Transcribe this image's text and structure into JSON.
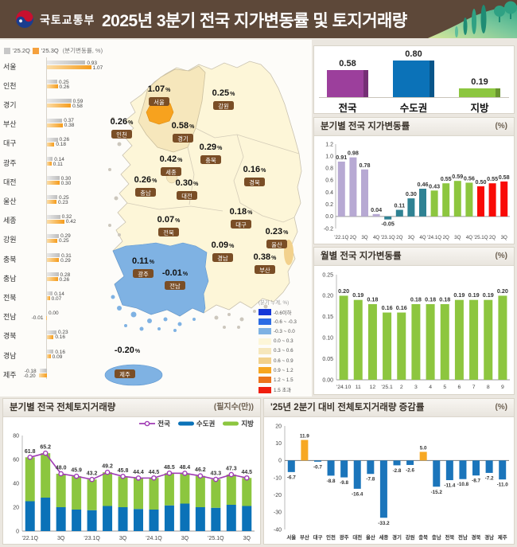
{
  "header": {
    "ministry": "국토교통부",
    "title": "2025년 3분기 전국 지가변동률 및 토지거래량"
  },
  "map": {
    "legend_title": "(분기 누계, %)",
    "legend": [
      {
        "range": "-0.6이하",
        "color": "#1438D8"
      },
      {
        "range": "-0.6 ~ -0.3",
        "color": "#2C6CE4"
      },
      {
        "range": "-0.3 ~ 0.0",
        "color": "#7FB2E3"
      },
      {
        "range": "0.0 ~ 0.3",
        "color": "#FDF6D8"
      },
      {
        "range": "0.3 ~ 0.6",
        "color": "#F6E7BC"
      },
      {
        "range": "0.6 ~ 0.9",
        "color": "#F2D18C"
      },
      {
        "range": "0.9 ~ 1.2",
        "color": "#F7A621"
      },
      {
        "range": "1.2 ~ 1.5",
        "color": "#EC741C"
      },
      {
        "range": "1.5 초과",
        "color": "#F01E0E"
      }
    ],
    "regions": [
      {
        "name": "서울",
        "value": "1.07"
      },
      {
        "name": "인천",
        "value": "0.26"
      },
      {
        "name": "경기",
        "value": "0.58"
      },
      {
        "name": "부산",
        "value": "0.38"
      },
      {
        "name": "대구",
        "value": "0.18"
      },
      {
        "name": "광주",
        "value": "0.11"
      },
      {
        "name": "대전",
        "value": "0.30"
      },
      {
        "name": "울산",
        "value": "0.23"
      },
      {
        "name": "세종",
        "value": "0.42"
      },
      {
        "name": "강원",
        "value": "0.25"
      },
      {
        "name": "충북",
        "value": "0.29"
      },
      {
        "name": "충남",
        "value": "0.26"
      },
      {
        "name": "전북",
        "value": "0.07"
      },
      {
        "name": "전남",
        "value": "-0.01"
      },
      {
        "name": "경북",
        "value": "0.16"
      },
      {
        "name": "경남",
        "value": "0.09"
      },
      {
        "name": "제주",
        "value": "-0.20"
      }
    ]
  },
  "chart_data": [
    {
      "id": "region_rates",
      "type": "bar",
      "orientation": "horizontal",
      "note": "(분기변동률, %)",
      "categories": [
        "서울",
        "인천",
        "경기",
        "부산",
        "대구",
        "광주",
        "대전",
        "울산",
        "세종",
        "강원",
        "충북",
        "충남",
        "전북",
        "전남",
        "경북",
        "경남",
        "제주"
      ],
      "series": [
        {
          "name": "'25.2Q",
          "color": "#C7C7C7",
          "values": [
            0.93,
            0.25,
            0.59,
            0.37,
            0.26,
            0.14,
            0.3,
            0.25,
            0.32,
            0.29,
            0.31,
            0.28,
            0.14,
            0.0,
            0.23,
            0.16,
            -0.18
          ]
        },
        {
          "name": "'25.3Q",
          "color": "#F5A13D",
          "values": [
            1.07,
            0.26,
            0.58,
            0.38,
            0.18,
            0.11,
            0.3,
            0.23,
            0.42,
            0.25,
            0.29,
            0.26,
            0.07,
            -0.01,
            0.16,
            0.09,
            -0.2
          ]
        }
      ]
    },
    {
      "id": "summary",
      "type": "bar",
      "categories": [
        "전국",
        "수도권",
        "지방"
      ],
      "values": [
        0.58,
        0.8,
        0.19
      ],
      "colors": [
        "#9C3F9C",
        "#0B72B8",
        "#8CC63F"
      ]
    },
    {
      "id": "quarterly",
      "type": "bar",
      "title": "분기별 전국 지가변동률",
      "unit": "(%)",
      "categories": [
        "'22.1Q",
        "2Q",
        "3Q",
        "4Q",
        "'23.1Q",
        "2Q",
        "3Q",
        "4Q",
        "'24.1Q",
        "2Q",
        "3Q",
        "4Q",
        "'25.1Q",
        "2Q",
        "3Q"
      ],
      "values": [
        0.91,
        0.98,
        0.78,
        0.04,
        -0.05,
        0.11,
        0.3,
        0.46,
        0.43,
        0.55,
        0.59,
        0.56,
        0.5,
        0.55,
        0.58
      ],
      "colors": [
        "#B7A9D3",
        "#B7A9D3",
        "#B7A9D3",
        "#B7A9D3",
        "#2F8293",
        "#2F8293",
        "#2F8293",
        "#2F8293",
        "#8DC63F",
        "#8DC63F",
        "#8DC63F",
        "#8DC63F",
        "#F90B07",
        "#F90B07",
        "#F90B07"
      ],
      "ylim": [
        -0.2,
        1.2
      ],
      "yticks": [
        1.2,
        1.0,
        0.8,
        0.6,
        0.4,
        0.2,
        0.0,
        -0.2
      ]
    },
    {
      "id": "monthly",
      "type": "bar",
      "title": "월별 전국 지가변동률",
      "unit": "(%)",
      "categories": [
        "'24.10",
        "11",
        "12",
        "'25.1",
        "2",
        "3",
        "4",
        "5",
        "6",
        "7",
        "8",
        "9"
      ],
      "values": [
        0.2,
        0.19,
        0.18,
        0.16,
        0.16,
        0.18,
        0.18,
        0.18,
        0.19,
        0.19,
        0.19,
        0.2
      ],
      "color": "#8DC63F",
      "ylim": [
        0,
        0.25
      ],
      "yticks": [
        0.25,
        0.2,
        0.15,
        0.1,
        0.05,
        0.0
      ]
    },
    {
      "id": "volume",
      "type": "bar",
      "subtype": "stacked-with-line",
      "title": "분기별 전국 전체토지거래량",
      "unit": "(필지수(만))",
      "categories": [
        "'22.1Q",
        "2Q",
        "3Q",
        "4Q",
        "'23.1Q",
        "2Q",
        "3Q",
        "4Q",
        "'24.1Q",
        "2Q",
        "3Q",
        "4Q",
        "'25.1Q",
        "2Q",
        "3Q"
      ],
      "series": [
        {
          "name": "전국",
          "type": "line",
          "color": "#A03CB4",
          "values": [
            61.8,
            65.2,
            48.0,
            45.9,
            43.2,
            49.2,
            45.8,
            44.4,
            44.5,
            48.5,
            48.4,
            46.2,
            43.3,
            47.3,
            44.5
          ]
        },
        {
          "name": "수도권",
          "type": "bar",
          "color": "#0B72B8",
          "values": [
            25.0,
            28.0,
            20.0,
            18.0,
            17.5,
            21.0,
            20.0,
            18.5,
            18.0,
            21.5,
            23.0,
            20.0,
            19.5,
            22.0,
            21.0
          ]
        },
        {
          "name": "지방",
          "type": "bar",
          "color": "#8CC63F",
          "values": [
            36.8,
            37.2,
            28.0,
            27.9,
            25.7,
            28.2,
            25.8,
            25.9,
            26.5,
            27.0,
            25.4,
            26.2,
            23.8,
            25.3,
            23.5
          ]
        }
      ],
      "ylim": [
        0,
        80
      ],
      "yticks": [
        80,
        60,
        40,
        20,
        0
      ]
    },
    {
      "id": "regional_volume_change",
      "type": "bar",
      "title": "'25년 2분기 대비 전체토지거래량 증감률",
      "unit": "(%)",
      "categories": [
        "서울",
        "부산",
        "대구",
        "인천",
        "광주",
        "대전",
        "울산",
        "세종",
        "경기",
        "강원",
        "충북",
        "충남",
        "전북",
        "전남",
        "경북",
        "경남",
        "제주"
      ],
      "values": [
        -6.7,
        11.9,
        -0.7,
        -8.8,
        -9.8,
        -16.4,
        -7.8,
        -33.2,
        -2.8,
        -2.6,
        5.0,
        -15.2,
        -11.4,
        -10.8,
        -8.7,
        -7.2,
        -11.0
      ],
      "positive_color": "#F7A823",
      "negative_color": "#1B75BB",
      "ylim": [
        -40,
        20
      ],
      "yticks": [
        20,
        10,
        0,
        -10,
        -20,
        -30,
        -40
      ]
    }
  ]
}
